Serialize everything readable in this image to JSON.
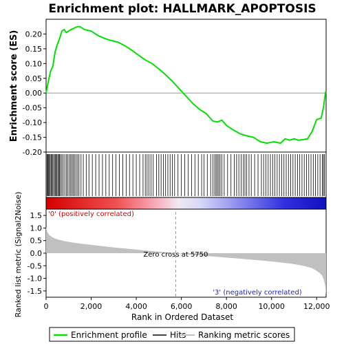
{
  "chart_data": {
    "type": "line",
    "title": "Enrichment plot: HALLMARK_APOPTOSIS",
    "enrichment_panel": {
      "ylabel": "Enrichment score (ES)",
      "ylim": [
        -0.2,
        0.25
      ],
      "yticks": [
        "0.20",
        "0.15",
        "0.10",
        "0.05",
        "0.00",
        "-0.05",
        "-0.10",
        "-0.15",
        "-0.20"
      ],
      "ytick_values": [
        0.2,
        0.15,
        0.1,
        0.05,
        0.0,
        -0.05,
        -0.1,
        -0.15,
        -0.2
      ],
      "x": [
        0,
        100,
        200,
        300,
        400,
        500,
        600,
        700,
        800,
        900,
        1000,
        1100,
        1200,
        1300,
        1400,
        1500,
        1700,
        2000,
        2300,
        2600,
        2900,
        3200,
        3500,
        3800,
        4100,
        4400,
        4700,
        5000,
        5300,
        5600,
        5900,
        6200,
        6500,
        6800,
        7100,
        7400,
        7600,
        7800,
        8000,
        8300,
        8600,
        8900,
        9200,
        9500,
        9800,
        10100,
        10400,
        10600,
        10800,
        11000,
        11200,
        11400,
        11600,
        11800,
        12000,
        12200,
        12300,
        12400
      ],
      "series": [
        {
          "name": "Enrichment profile",
          "color": "#00e000",
          "values": [
            0.0,
            0.04,
            0.075,
            0.09,
            0.14,
            0.165,
            0.185,
            0.21,
            0.215,
            0.205,
            0.21,
            0.215,
            0.218,
            0.222,
            0.225,
            0.225,
            0.215,
            0.21,
            0.195,
            0.185,
            0.178,
            0.172,
            0.16,
            0.145,
            0.128,
            0.112,
            0.1,
            0.082,
            0.062,
            0.04,
            0.015,
            -0.01,
            -0.035,
            -0.055,
            -0.07,
            -0.095,
            -0.098,
            -0.092,
            -0.11,
            -0.125,
            -0.138,
            -0.145,
            -0.15,
            -0.165,
            -0.17,
            -0.165,
            -0.17,
            -0.155,
            -0.16,
            -0.155,
            -0.16,
            -0.158,
            -0.155,
            -0.13,
            -0.09,
            -0.085,
            -0.05,
            0.005
          ]
        }
      ]
    },
    "hits": {
      "name": "Hits",
      "positions": [
        40,
        70,
        100,
        140,
        180,
        220,
        260,
        300,
        350,
        400,
        430,
        470,
        520,
        560,
        600,
        640,
        700,
        760,
        830,
        900,
        960,
        1030,
        1090,
        1150,
        1200,
        1260,
        1330,
        1400,
        1460,
        1550,
        1650,
        1780,
        1900,
        2050,
        2200,
        2350,
        2500,
        2650,
        2800,
        2950,
        3100,
        3250,
        3400,
        3550,
        3700,
        3850,
        4000,
        4150,
        4300,
        4400,
        4480,
        4560,
        4650,
        4750,
        4900,
        5000,
        5100,
        5200,
        5300,
        5400,
        5500,
        5600,
        5700,
        5850,
        6000,
        6150,
        6300,
        6450,
        6600,
        6750,
        6900,
        7000,
        7150,
        7300,
        7400,
        7480,
        7540,
        7600,
        7660,
        7720,
        7800,
        7900,
        8050,
        8200,
        8350,
        8450,
        8550,
        8650,
        8750,
        8820,
        8900,
        9000,
        9100,
        9250,
        9400,
        9550,
        9650,
        9750,
        9850,
        9950,
        10050,
        10150,
        10250,
        10350,
        10450,
        10550,
        10650,
        10750,
        10850,
        10950,
        11050,
        11150,
        11250,
        11350,
        11450,
        11550,
        11650,
        11750,
        11850,
        11950,
        12050,
        12150,
        12250,
        12300,
        12350
      ]
    },
    "ranking_panel": {
      "ylabel": "Ranked list metric (Signal2Noise)",
      "ylim": [
        -1.75,
        1.75
      ],
      "yticks": [
        "1.5",
        "1.0",
        "0.5",
        "0.0",
        "-0.5",
        "-1.0",
        "-1.5"
      ],
      "ytick_values": [
        1.5,
        1.0,
        0.5,
        0.0,
        -0.5,
        -1.0,
        -1.5
      ],
      "x": [
        0,
        50,
        150,
        300,
        500,
        800,
        1200,
        1700,
        2300,
        3000,
        3800,
        4600,
        5400,
        5750,
        6200,
        7000,
        7800,
        8600,
        9400,
        10200,
        10900,
        11400,
        11800,
        12000,
        12150,
        12250,
        12320,
        12380,
        12420
      ],
      "values": [
        1.05,
        0.85,
        0.72,
        0.62,
        0.55,
        0.48,
        0.42,
        0.36,
        0.3,
        0.23,
        0.16,
        0.09,
        0.03,
        0.0,
        -0.04,
        -0.1,
        -0.16,
        -0.22,
        -0.28,
        -0.35,
        -0.42,
        -0.5,
        -0.6,
        -0.7,
        -0.8,
        -0.9,
        -1.05,
        -1.3,
        -1.65
      ],
      "series_name": "Ranking metric scores",
      "zero_cross_label": "Zero cross at 5750",
      "zero_cross": 5750,
      "positive_label": "'0' (positively correlated)",
      "negative_label": "'3' (negatively correlated)"
    },
    "xlabel": "Rank in Ordered Dataset",
    "xlim": [
      0,
      12420
    ],
    "xticks": [
      "0",
      "2,000",
      "4,000",
      "6,000",
      "8,000",
      "10,000",
      "12,000"
    ],
    "xtick_values": [
      0,
      2000,
      4000,
      6000,
      8000,
      10000,
      12000
    ],
    "legend": {
      "placement": "bottom",
      "items": [
        {
          "label": "Enrichment profile",
          "color": "#00e000"
        },
        {
          "label": "Hits",
          "color": "#000000"
        },
        {
          "label": "Ranking metric scores",
          "color": "#c0c0c0"
        }
      ]
    },
    "grid": false
  }
}
